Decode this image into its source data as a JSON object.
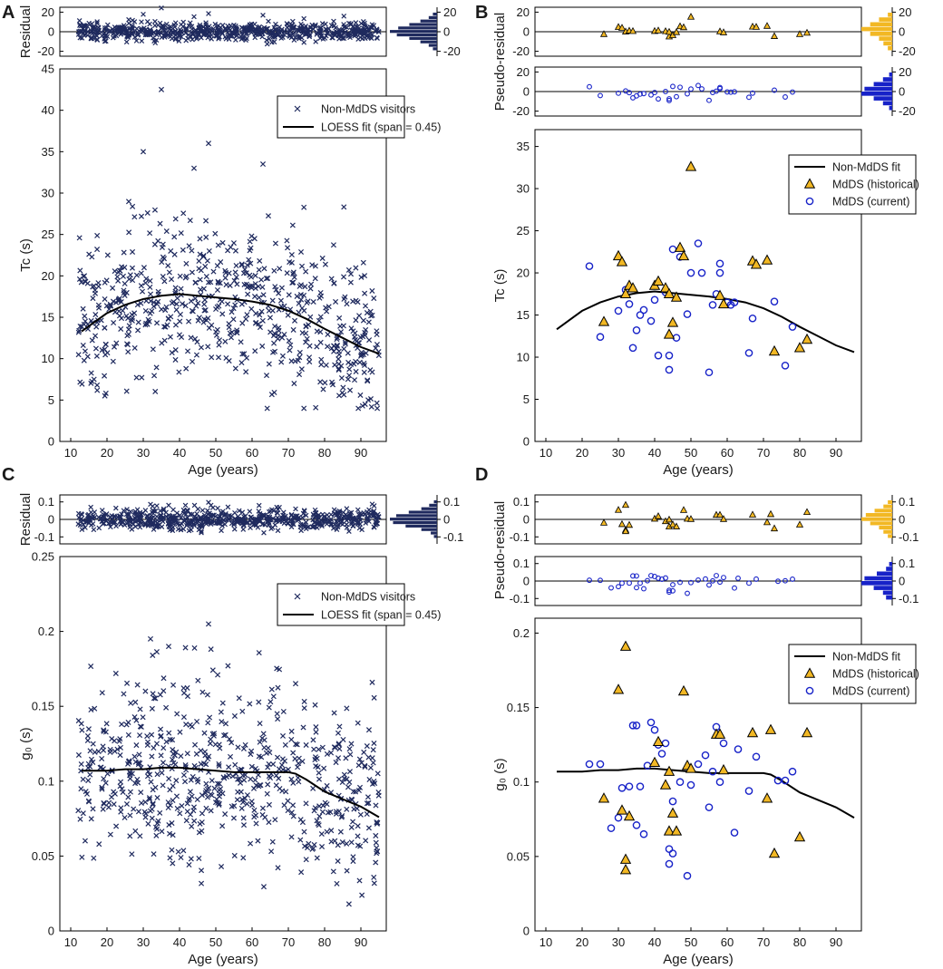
{
  "colors": {
    "navy": "#1f2a5e",
    "gold": "#f2b824",
    "blue": "#1722c8",
    "black": "#000000"
  },
  "panels": [
    {
      "label": "A",
      "chart_data": {
        "type": "scatter",
        "title": "",
        "xlabel": "Age (years)",
        "ylabel": "Tc (s)",
        "xlim": [
          7,
          97
        ],
        "ylim": [
          0,
          45
        ],
        "xticks": [
          "10",
          "20",
          "30",
          "40",
          "50",
          "60",
          "70",
          "80",
          "90"
        ],
        "yticks": [
          "0",
          "5",
          "10",
          "15",
          "20",
          "25",
          "30",
          "35",
          "40",
          "45"
        ],
        "legend": {
          "placement": "top-right",
          "entries": [
            "Non-MdDS visitors",
            "LOESS fit (span = 0.45)"
          ]
        },
        "residual": {
          "ylabel": "Residual",
          "ylim": [
            -25,
            25
          ],
          "yticks": [
            "-20",
            "0",
            "20"
          ],
          "hist_color": "#1f2a5e",
          "hist_counts": [
            3,
            6,
            12,
            20,
            28,
            34,
            29,
            20,
            12,
            6,
            3
          ]
        },
        "fit": {
          "x": [
            13,
            20,
            25,
            30,
            35,
            40,
            45,
            50,
            55,
            60,
            65,
            70,
            75,
            80,
            85,
            90,
            95
          ],
          "y": [
            13.3,
            15.5,
            16.5,
            17.2,
            17.6,
            17.8,
            17.6,
            17.4,
            17.2,
            16.9,
            16.5,
            15.8,
            14.8,
            13.6,
            12.5,
            11.4,
            10.6
          ]
        },
        "series": [
          {
            "name": "Non-MdDS visitors",
            "marker": "x",
            "n": 650,
            "seed": 11,
            "x_range": [
              12,
              95
            ],
            "noise_sd": 4.6,
            "y_range": [
              4,
              36
            ],
            "extra_points": [
              {
                "x": 35,
                "y": 42.5
              },
              {
                "x": 48,
                "y": 36
              },
              {
                "x": 30,
                "y": 35
              },
              {
                "x": 63,
                "y": 33.5
              },
              {
                "x": 44,
                "y": 33
              }
            ]
          }
        ]
      }
    },
    {
      "label": "B",
      "chart_data": {
        "type": "scatter",
        "title": "",
        "xlabel": "Age (years)",
        "ylabel": "Tc (s)",
        "xlim": [
          7,
          97
        ],
        "ylim": [
          0,
          37
        ],
        "xticks": [
          "10",
          "20",
          "30",
          "40",
          "50",
          "60",
          "70",
          "80",
          "90"
        ],
        "yticks": [
          "0",
          "5",
          "10",
          "15",
          "20",
          "25",
          "30",
          "35"
        ],
        "legend": {
          "placement": "top-right",
          "entries": [
            "Non-MdDS fit",
            "MdDS (historical)",
            "MdDS (current)"
          ]
        },
        "residual_top": {
          "ylabel": "Pseudo-residual",
          "ylim": [
            -25,
            25
          ],
          "yticks": [
            "-20",
            "0",
            "20"
          ],
          "hist_color": "#f2b824",
          "hist_counts": [
            1,
            3,
            5,
            7,
            5,
            3,
            2,
            1
          ]
        },
        "residual_bottom": {
          "ylim": [
            -25,
            25
          ],
          "yticks": [
            "-20",
            "0",
            "20"
          ],
          "hist_color": "#1722c8",
          "hist_counts": [
            1,
            3,
            6,
            9,
            10,
            6,
            3,
            1
          ]
        },
        "fit": {
          "x": [
            13,
            20,
            25,
            30,
            35,
            40,
            45,
            50,
            55,
            60,
            65,
            70,
            75,
            80,
            85,
            90,
            95
          ],
          "y": [
            13.3,
            15.5,
            16.5,
            17.2,
            17.6,
            17.8,
            17.6,
            17.4,
            17.2,
            16.9,
            16.5,
            15.8,
            14.8,
            13.6,
            12.5,
            11.4,
            10.6
          ]
        },
        "series": [
          {
            "name": "MdDS (historical)",
            "marker": "triangle",
            "x": [
              26,
              30,
              31,
              32,
              33,
              34,
              40,
              41,
              43,
              44,
              44,
              45,
              46,
              47,
              48,
              50,
              58,
              59,
              67,
              68,
              71,
              73,
              80,
              82
            ],
            "y": [
              14.2,
              22,
              21.3,
              17.5,
              18.5,
              18.2,
              18.5,
              19,
              18.2,
              12.7,
              17.5,
              14.1,
              17.1,
              23,
              22,
              32.6,
              17.3,
              16.3,
              21.4,
              21,
              21.5,
              10.7,
              11.1,
              12.1
            ]
          },
          {
            "name": "MdDS (current)",
            "marker": "circle",
            "x": [
              22,
              25,
              30,
              32,
              33,
              34,
              35,
              36,
              37,
              39,
              40,
              41,
              43,
              44,
              44,
              45,
              46,
              47,
              49,
              50,
              52,
              53,
              55,
              56,
              57,
              58,
              58,
              60,
              61,
              62,
              66,
              67,
              73,
              76,
              78
            ],
            "y": [
              20.8,
              12.4,
              15.5,
              18,
              16.3,
              11.1,
              13.2,
              15,
              15.6,
              14.3,
              16.8,
              10.2,
              17.7,
              10.2,
              8.5,
              22.8,
              12.3,
              21.9,
              15.1,
              20,
              23.5,
              20,
              8.2,
              16.2,
              17.5,
              21.1,
              20,
              16.5,
              16.2,
              16.5,
              10.5,
              14.6,
              16.6,
              9,
              13.6
            ]
          }
        ]
      }
    },
    {
      "label": "C",
      "chart_data": {
        "type": "scatter",
        "title": "",
        "xlabel": "Age (years)",
        "ylabel": "g₀ (s)",
        "xlim": [
          7,
          97
        ],
        "ylim": [
          0,
          0.25
        ],
        "xticks": [
          "10",
          "20",
          "30",
          "40",
          "50",
          "60",
          "70",
          "80",
          "90"
        ],
        "yticks": [
          "0",
          "0.05",
          "0.1",
          "0.15",
          "0.2",
          "0.25"
        ],
        "legend": {
          "placement": "top-right",
          "entries": [
            "Non-MdDS visitors",
            "LOESS fit (span = 0.45)"
          ]
        },
        "residual": {
          "ylabel": "Residual",
          "ylim": [
            -0.14,
            0.14
          ],
          "yticks": [
            "-0.1",
            "0",
            "0.1"
          ],
          "hist_color": "#1f2a5e",
          "hist_counts": [
            2,
            5,
            10,
            18,
            26,
            30,
            28,
            20,
            10,
            4,
            2
          ]
        },
        "fit": {
          "x": [
            13,
            20,
            25,
            30,
            35,
            40,
            45,
            50,
            55,
            60,
            65,
            70,
            72,
            75,
            80,
            85,
            90,
            95
          ],
          "y": [
            0.107,
            0.107,
            0.108,
            0.108,
            0.109,
            0.109,
            0.108,
            0.107,
            0.106,
            0.106,
            0.106,
            0.106,
            0.105,
            0.101,
            0.093,
            0.088,
            0.083,
            0.076
          ]
        },
        "series": [
          {
            "name": "Non-MdDS visitors",
            "marker": "x",
            "n": 650,
            "seed": 29,
            "x_range": [
              12,
              95
            ],
            "noise_sd": 0.03,
            "y_range": [
              0.001,
              0.2
            ],
            "extra_points": [
              {
                "x": 48,
                "y": 0.205
              },
              {
                "x": 32,
                "y": 0.195
              },
              {
                "x": 37,
                "y": 0.19
              }
            ]
          }
        ]
      }
    },
    {
      "label": "D",
      "chart_data": {
        "type": "scatter",
        "title": "",
        "xlabel": "Age (years)",
        "ylabel": "g₀ (s)",
        "xlim": [
          7,
          97
        ],
        "ylim": [
          0,
          0.21
        ],
        "xticks": [
          "10",
          "20",
          "30",
          "40",
          "50",
          "60",
          "70",
          "80",
          "90"
        ],
        "yticks": [
          "0",
          "0.05",
          "0.1",
          "0.15",
          "0.2"
        ],
        "legend": {
          "placement": "top-right",
          "entries": [
            "Non-MdDS fit",
            "MdDS (historical)",
            "MdDS (current)"
          ]
        },
        "residual_top": {
          "ylabel": "Pseudo-residual",
          "ylim": [
            -0.14,
            0.14
          ],
          "yticks": [
            "-0.1",
            "0",
            "0.1"
          ],
          "hist_color": "#f2b824",
          "hist_counts": [
            1,
            2,
            4,
            6,
            7,
            5,
            3,
            2,
            1
          ]
        },
        "residual_bottom": {
          "ylim": [
            -0.14,
            0.14
          ],
          "yticks": [
            "-0.1",
            "0",
            "0.1"
          ],
          "hist_color": "#1722c8",
          "hist_counts": [
            1,
            2,
            5,
            9,
            10,
            6,
            3,
            2
          ]
        },
        "fit": {
          "x": [
            13,
            20,
            25,
            30,
            35,
            40,
            45,
            50,
            55,
            60,
            65,
            70,
            72,
            75,
            80,
            85,
            90,
            95
          ],
          "y": [
            0.107,
            0.107,
            0.108,
            0.108,
            0.109,
            0.109,
            0.108,
            0.107,
            0.106,
            0.106,
            0.106,
            0.106,
            0.105,
            0.101,
            0.093,
            0.088,
            0.083,
            0.076
          ]
        },
        "series": [
          {
            "name": "MdDS (historical)",
            "marker": "triangle",
            "x": [
              26,
              30,
              31,
              32,
              32,
              32,
              33,
              40,
              41,
              43,
              44,
              44,
              45,
              46,
              48,
              49,
              50,
              57,
              58,
              59,
              67,
              71,
              72,
              73,
              80,
              82
            ],
            "y": [
              0.089,
              0.162,
              0.081,
              0.191,
              0.048,
              0.041,
              0.077,
              0.113,
              0.127,
              0.098,
              0.107,
              0.067,
              0.079,
              0.067,
              0.161,
              0.111,
              0.109,
              0.132,
              0.132,
              0.108,
              0.133,
              0.089,
              0.135,
              0.052,
              0.063,
              0.133
            ]
          },
          {
            "name": "MdDS (current)",
            "marker": "circle",
            "x": [
              22,
              25,
              28,
              30,
              31,
              33,
              34,
              35,
              35,
              36,
              37,
              38,
              39,
              40,
              41,
              42,
              43,
              44,
              44,
              45,
              45,
              47,
              49,
              50,
              52,
              54,
              55,
              56,
              57,
              58,
              59,
              62,
              63,
              66,
              68,
              74,
              76,
              78
            ],
            "y": [
              0.112,
              0.112,
              0.069,
              0.076,
              0.096,
              0.097,
              0.138,
              0.138,
              0.071,
              0.097,
              0.065,
              0.111,
              0.14,
              0.135,
              0.125,
              0.119,
              0.126,
              0.055,
              0.045,
              0.052,
              0.087,
              0.1,
              0.037,
              0.098,
              0.112,
              0.118,
              0.083,
              0.107,
              0.137,
              0.1,
              0.126,
              0.066,
              0.122,
              0.094,
              0.117,
              0.101,
              0.101,
              0.107
            ]
          }
        ]
      }
    }
  ]
}
